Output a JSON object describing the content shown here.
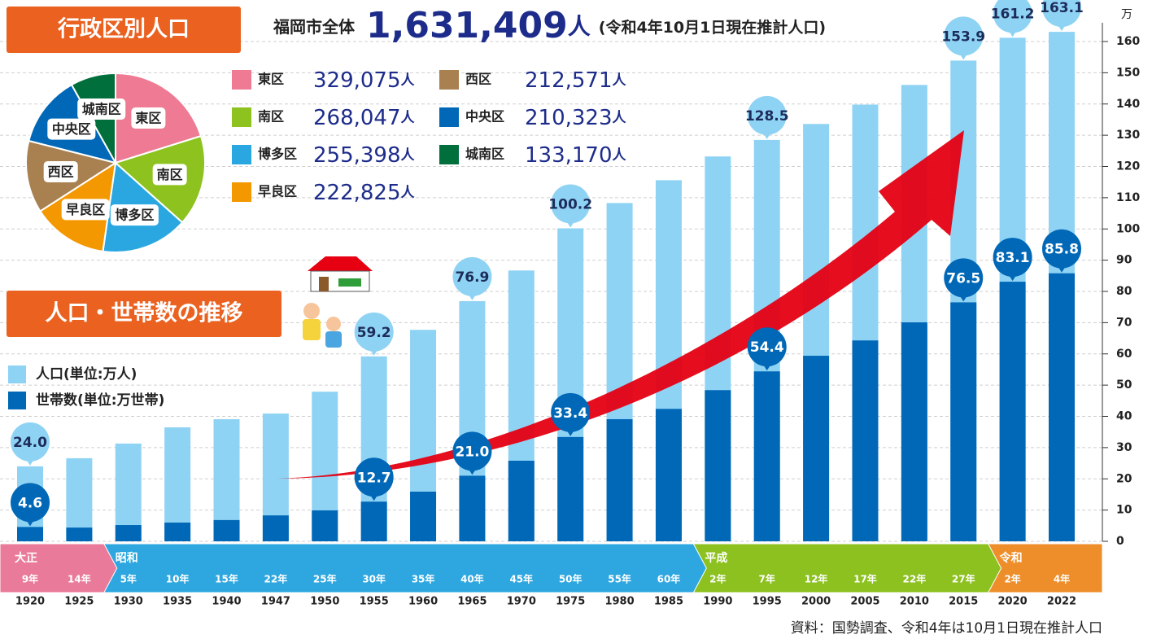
{
  "chart_data": [
    {
      "type": "pie",
      "title": "行政区別人口",
      "total": {
        "label": "福岡市全体",
        "value": "1,631,409",
        "unit": "人",
        "note": "(令和4年10月1日現在推計人口)"
      },
      "categories": [
        "東区",
        "南区",
        "博多区",
        "早良区",
        "西区",
        "中央区",
        "城南区"
      ],
      "values": [
        329075,
        268047,
        255398,
        222825,
        212571,
        210323,
        133170
      ],
      "value_labels": [
        "329,075",
        "268,047",
        "255,398",
        "222,825",
        "212,571",
        "210,323",
        "133,170"
      ],
      "unit": "人",
      "colors": [
        "#ee7b93",
        "#8dc21f",
        "#2aa7e0",
        "#f39800",
        "#a98150",
        "#0068b7",
        "#006f3c"
      ]
    },
    {
      "type": "bar",
      "title": "人口・世帯数の推移",
      "y_unit": "万",
      "source": "資料：国勢調査、令和4年は10月1日現在推計人口",
      "categories": [
        "1920",
        "1925",
        "1930",
        "1935",
        "1940",
        "1947",
        "1950",
        "1955",
        "1960",
        "1965",
        "1970",
        "1975",
        "1980",
        "1985",
        "1990",
        "1995",
        "2000",
        "2005",
        "2010",
        "2015",
        "2020",
        "2022"
      ],
      "eras": [
        {
          "name": "大正",
          "color": "#ea7a9a",
          "years": [
            "9年",
            "14年"
          ]
        },
        {
          "name": "昭和",
          "color": "#2ea7e0",
          "years": [
            "5年",
            "10年",
            "15年",
            "22年",
            "25年",
            "30年",
            "35年",
            "40年",
            "45年",
            "50年",
            "55年",
            "60年"
          ]
        },
        {
          "name": "平成",
          "color": "#8cc11f",
          "years": [
            "2年",
            "7年",
            "12年",
            "17年",
            "22年",
            "27年"
          ]
        },
        {
          "name": "令和",
          "color": "#ee8e2a",
          "years": [
            "2年",
            "4年"
          ]
        }
      ],
      "series": [
        {
          "name": "人口(単位:万人)",
          "color": "#8fd3f4",
          "values": [
            24.0,
            26.6,
            31.3,
            36.5,
            39.1,
            40.9,
            47.9,
            59.2,
            67.7,
            76.9,
            86.7,
            100.2,
            108.3,
            115.6,
            123.2,
            128.5,
            133.6,
            139.8,
            146.1,
            153.9,
            161.2,
            163.1
          ],
          "value_labels": [
            "24.0",
            null,
            null,
            null,
            null,
            null,
            null,
            "59.2",
            null,
            "76.9",
            null,
            "100.2",
            null,
            null,
            null,
            "128.5",
            null,
            null,
            null,
            "153.9",
            "161.2",
            "163.1"
          ]
        },
        {
          "name": "世帯数(単位:万世帯)",
          "color": "#0068b7",
          "values": [
            4.6,
            4.4,
            5.2,
            6.0,
            6.8,
            8.3,
            9.9,
            12.7,
            15.9,
            21.0,
            25.8,
            33.4,
            39.1,
            42.4,
            48.4,
            54.4,
            59.4,
            64.3,
            70.1,
            76.5,
            83.1,
            85.8
          ],
          "value_labels": [
            "4.6",
            null,
            null,
            null,
            null,
            null,
            null,
            "12.7",
            null,
            "21.0",
            null,
            "33.4",
            null,
            null,
            null,
            "54.4",
            null,
            null,
            null,
            "76.5",
            "83.1",
            "85.8"
          ]
        }
      ],
      "ylim": [
        0,
        160
      ],
      "yticks": [
        0,
        10,
        20,
        30,
        40,
        50,
        60,
        70,
        80,
        90,
        100,
        110,
        120,
        130,
        140,
        150,
        160
      ],
      "grid": true
    }
  ]
}
